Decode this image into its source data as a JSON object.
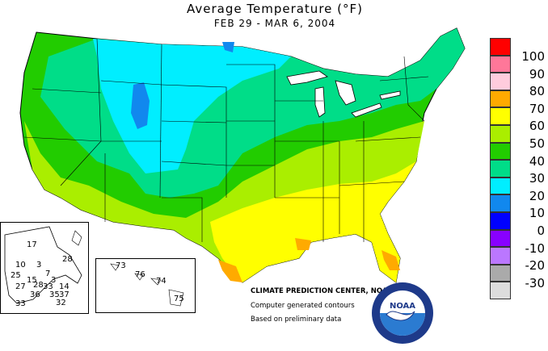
{
  "header": {
    "title": "Average Temperature (°F)",
    "date_range": "FEB 29 - MAR  6, 2004"
  },
  "legend": {
    "items": [
      {
        "label": "100",
        "color": "#ff0000"
      },
      {
        "label": "90",
        "color": "#ff7799"
      },
      {
        "label": "80",
        "color": "#ffccdd"
      },
      {
        "label": "70",
        "color": "#ffaa00"
      },
      {
        "label": "60",
        "color": "#ffff00"
      },
      {
        "label": "50",
        "color": "#aaee00"
      },
      {
        "label": "40",
        "color": "#22cc00"
      },
      {
        "label": "30",
        "color": "#00dd88"
      },
      {
        "label": "20",
        "color": "#00eeff"
      },
      {
        "label": "10",
        "color": "#1188ee"
      },
      {
        "label": "0",
        "color": "#0000ff"
      },
      {
        "label": "-10",
        "color": "#8800ff"
      },
      {
        "label": "-20",
        "color": "#bb77ff"
      },
      {
        "label": "-30",
        "color": "#aaaaaa"
      },
      {
        "label": "",
        "color": "#dddddd"
      }
    ]
  },
  "credits": {
    "center": "CLIMATE PREDICTION CENTER, NOAA",
    "line2": "Computer generated contours",
    "line3": "Based on preliminary data"
  },
  "alaska_values": [
    "17",
    "28",
    "10",
    "3",
    "7",
    "25",
    "15",
    "3",
    "27",
    "28",
    "33",
    "14",
    "36",
    "35",
    "37",
    "32",
    "33"
  ],
  "hawaii_values": [
    "73",
    "76",
    "74",
    "75"
  ],
  "logo": {
    "text": "NOAA"
  }
}
